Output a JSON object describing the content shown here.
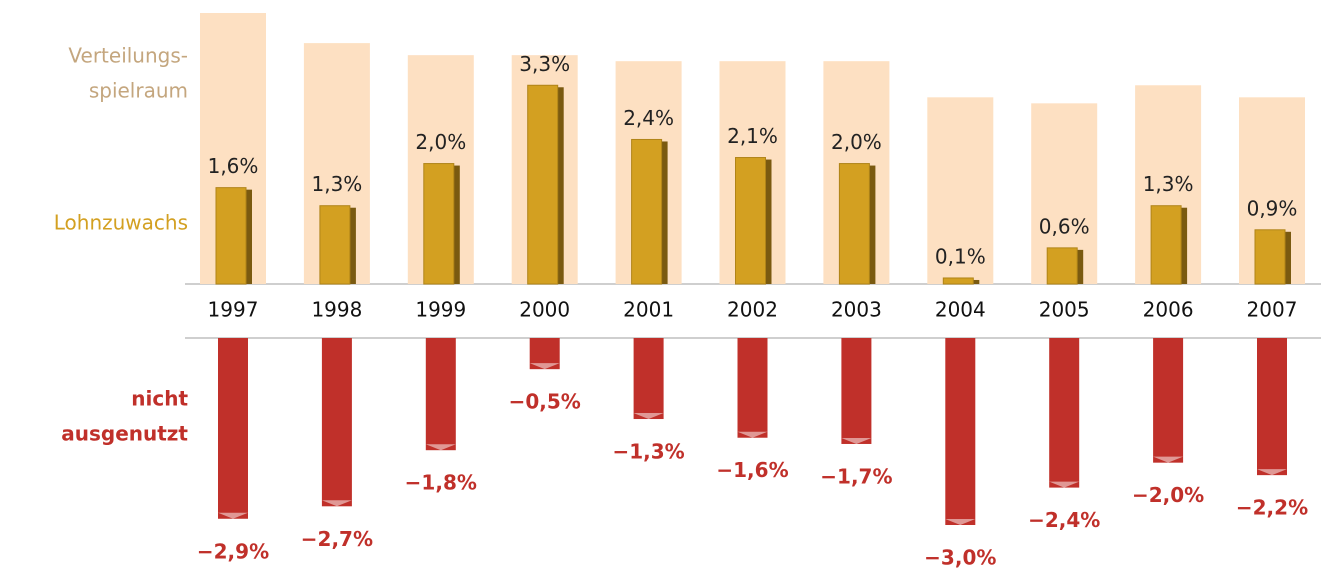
{
  "chart_data": {
    "type": "bar",
    "categories": [
      "1997",
      "1998",
      "1999",
      "2000",
      "2001",
      "2002",
      "2003",
      "2004",
      "2005",
      "2006",
      "2007"
    ],
    "series": [
      {
        "name": [
          "Verteilungs-",
          "spielraum"
        ],
        "color": "#fde0c2",
        "legend_color": "#c4a67e",
        "values": [
          4.5,
          4.0,
          3.8,
          3.8,
          3.7,
          3.7,
          3.7,
          3.1,
          3.0,
          3.3,
          3.1
        ]
      },
      {
        "name": [
          "Lohnzuwachs"
        ],
        "color": "#d3a021",
        "values": [
          1.6,
          1.3,
          2.0,
          3.3,
          2.4,
          2.1,
          2.0,
          0.1,
          0.6,
          1.3,
          0.9
        ],
        "value_labels": [
          "1,6%",
          "1,3%",
          "2,0%",
          "3,3%",
          "2,4%",
          "2,1%",
          "2,0%",
          "0,1%",
          "0,6%",
          "1,3%",
          "0,9%"
        ]
      },
      {
        "name": [
          "nicht",
          "ausgenutzt"
        ],
        "color": "#c0302a",
        "axis": "y2",
        "values": [
          -2.9,
          -2.7,
          -1.8,
          -0.5,
          -1.3,
          -1.6,
          -1.7,
          -3.0,
          -2.4,
          -2.0,
          -2.2
        ],
        "value_labels": [
          "−2,9%",
          "−2,7%",
          "−1,8%",
          "−0,5%",
          "−1,3%",
          "−1,6%",
          "−1,7%",
          "−3,0%",
          "−2,4%",
          "−2,0%",
          "−2,2%"
        ]
      }
    ],
    "ylim": [
      0,
      4.5
    ],
    "y2lim": [
      -3,
      0
    ]
  }
}
